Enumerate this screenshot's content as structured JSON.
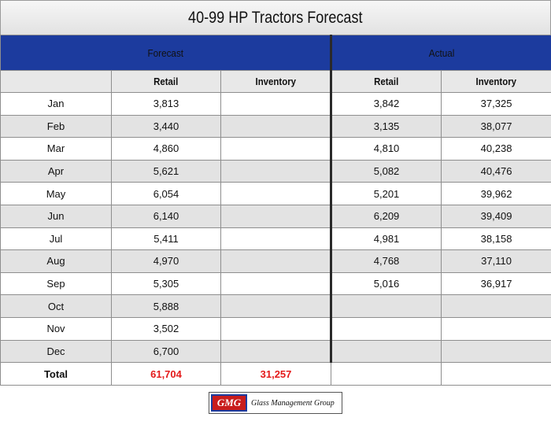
{
  "title": "40-99 HP Tractors Forecast",
  "groups": {
    "forecast": "Forecast",
    "actual": "Actual"
  },
  "columns": {
    "month": "",
    "retail": "Retail",
    "inventory": "Inventory"
  },
  "colors": {
    "header_blue": "#1c3b9e",
    "forecast_red": "#e41a1a",
    "row_alt": "#e3e3e3"
  },
  "chart_data": {
    "type": "table",
    "title": "40-99 HP Tractors Forecast",
    "column_groups": [
      "Forecast",
      "Actual"
    ],
    "columns": [
      "",
      "Retail",
      "Inventory",
      "Retail",
      "Inventory"
    ],
    "rows": [
      {
        "month": "Jan",
        "forecast_retail": "3,813",
        "forecast_inventory": "",
        "actual_retail": "3,842",
        "actual_inventory": "37,325"
      },
      {
        "month": "Feb",
        "forecast_retail": "3,440",
        "forecast_inventory": "",
        "actual_retail": "3,135",
        "actual_inventory": "38,077"
      },
      {
        "month": "Mar",
        "forecast_retail": "4,860",
        "forecast_inventory": "",
        "actual_retail": "4,810",
        "actual_inventory": "40,238"
      },
      {
        "month": "Apr",
        "forecast_retail": "5,621",
        "forecast_inventory": "",
        "actual_retail": "5,082",
        "actual_inventory": "40,476"
      },
      {
        "month": "May",
        "forecast_retail": "6,054",
        "forecast_inventory": "",
        "actual_retail": "5,201",
        "actual_inventory": "39,962"
      },
      {
        "month": "Jun",
        "forecast_retail": "6,140",
        "forecast_inventory": "",
        "actual_retail": "6,209",
        "actual_inventory": "39,409"
      },
      {
        "month": "Jul",
        "forecast_retail": "5,411",
        "forecast_inventory": "",
        "actual_retail": "4,981",
        "actual_inventory": "38,158"
      },
      {
        "month": "Aug",
        "forecast_retail": "4,970",
        "forecast_inventory": "",
        "actual_retail": "4,768",
        "actual_inventory": "37,110"
      },
      {
        "month": "Sep",
        "forecast_retail": "5,305",
        "forecast_inventory": "",
        "actual_retail": "5,016",
        "actual_inventory": "36,917"
      },
      {
        "month": "Oct",
        "forecast_retail": "5,888",
        "forecast_inventory": "",
        "actual_retail": "",
        "actual_inventory": ""
      },
      {
        "month": "Nov",
        "forecast_retail": "3,502",
        "forecast_inventory": "",
        "actual_retail": "",
        "actual_inventory": ""
      },
      {
        "month": "Dec",
        "forecast_retail": "6,700",
        "forecast_inventory": "",
        "actual_retail": "",
        "actual_inventory": ""
      }
    ],
    "total": {
      "label": "Total",
      "forecast_retail": "61,704",
      "forecast_inventory": "31,257",
      "actual_retail": "",
      "actual_inventory": ""
    }
  },
  "logo": {
    "mark": "GMG",
    "text": "Glass Management Group"
  }
}
